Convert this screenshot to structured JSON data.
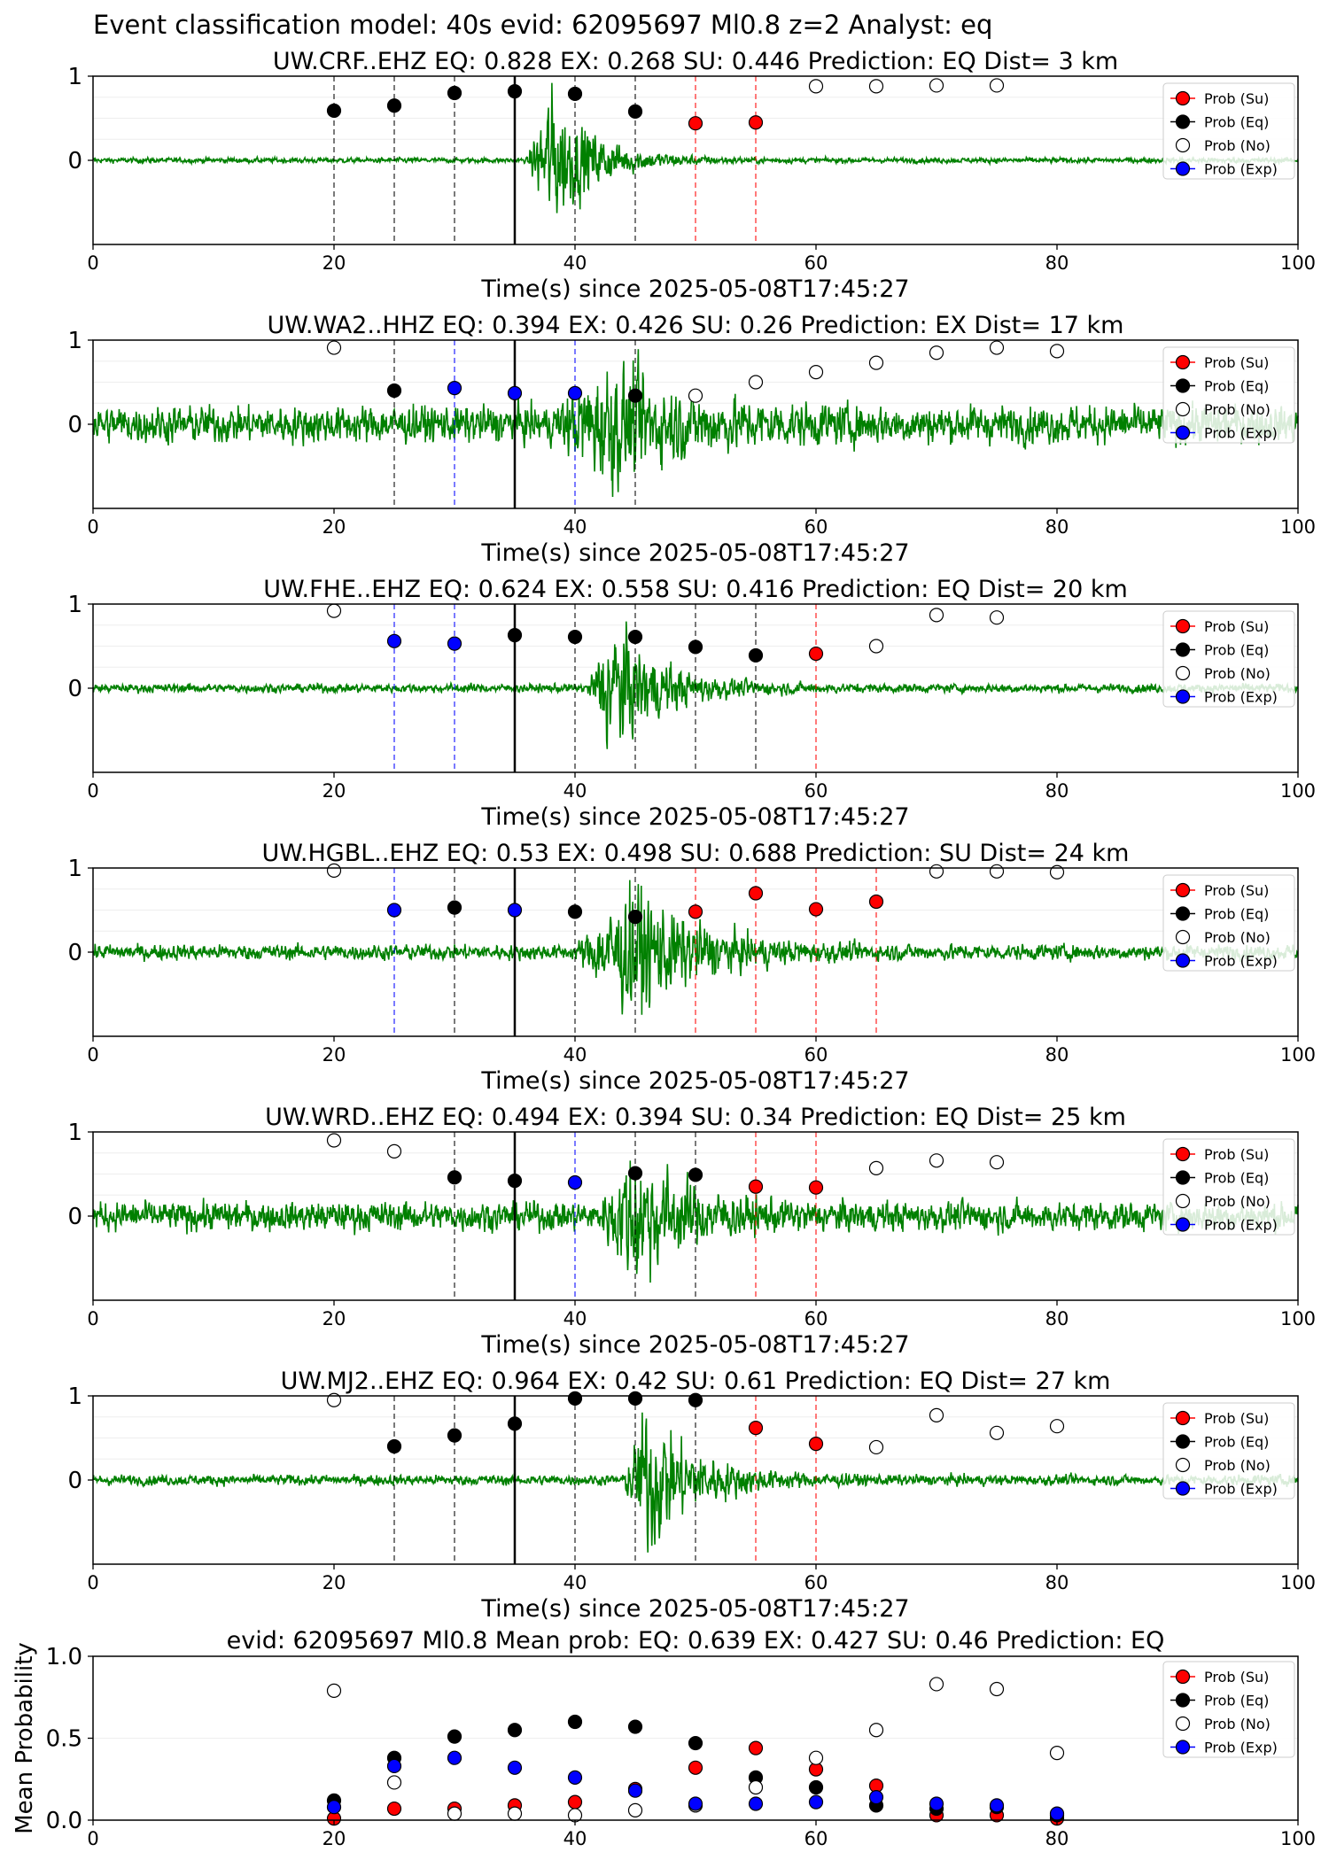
{
  "figure": {
    "suptitle": "Event classification model: 40s evid: 62095697 Ml0.8 z=2 Analyst: eq"
  },
  "legend_labels": [
    "Prob (Su)",
    "Prob (Eq)",
    "Prob (No)",
    "Prob (Exp)"
  ],
  "colors": {
    "su": "#ff0000",
    "eq": "#000000",
    "no": "#ffffff",
    "exp": "#0000ff",
    "waveform": "#008000"
  },
  "chart_data": [
    {
      "type": "line",
      "title": "UW.CRF..EHZ   EQ: 0.828  EX: 0.268  SU: 0.446   Prediction: EQ    Dist= 3 km",
      "xlabel": "Time(s) since 2025-05-08T17:45:27",
      "xlim": [
        0,
        100
      ],
      "ylim": [
        -1,
        1
      ],
      "xticks": [
        "0",
        "20",
        "40",
        "60",
        "80",
        "100"
      ],
      "yticks": [
        "1",
        "0"
      ],
      "origin_time": 35,
      "window_lines": [
        {
          "x": 20,
          "class": "eq"
        },
        {
          "x": 25,
          "class": "eq"
        },
        {
          "x": 30,
          "class": "eq"
        },
        {
          "x": 40,
          "class": "eq"
        },
        {
          "x": 45,
          "class": "eq"
        },
        {
          "x": 50,
          "class": "su"
        },
        {
          "x": 55,
          "class": "su"
        }
      ],
      "points": [
        {
          "x": 20,
          "y": 0.59,
          "class": "eq"
        },
        {
          "x": 25,
          "y": 0.65,
          "class": "eq"
        },
        {
          "x": 30,
          "y": 0.8,
          "class": "eq"
        },
        {
          "x": 35,
          "y": 0.82,
          "class": "eq"
        },
        {
          "x": 40,
          "y": 0.79,
          "class": "eq"
        },
        {
          "x": 45,
          "y": 0.58,
          "class": "eq"
        },
        {
          "x": 50,
          "y": 0.44,
          "class": "su"
        },
        {
          "x": 55,
          "y": 0.45,
          "class": "su"
        },
        {
          "x": 60,
          "y": 0.88,
          "class": "no"
        },
        {
          "x": 65,
          "y": 0.88,
          "class": "no"
        },
        {
          "x": 70,
          "y": 0.89,
          "class": "no"
        },
        {
          "x": 75,
          "y": 0.89,
          "class": "no"
        }
      ],
      "waveform": {
        "noise": 0.03,
        "burst_start": 36,
        "burst_peak": 38,
        "burst_amp": 0.85,
        "decay": 3.5
      }
    },
    {
      "type": "line",
      "title": "UW.WA2..HHZ   EQ: 0.394  EX: 0.426  SU: 0.26   Prediction: EX    Dist= 17 km",
      "xlabel": "Time(s) since 2025-05-08T17:45:27",
      "xlim": [
        0,
        100
      ],
      "ylim": [
        -1,
        1
      ],
      "xticks": [
        "0",
        "20",
        "40",
        "60",
        "80",
        "100"
      ],
      "yticks": [
        "1",
        "0"
      ],
      "origin_time": 35,
      "window_lines": [
        {
          "x": 25,
          "class": "eq"
        },
        {
          "x": 30,
          "class": "exp"
        },
        {
          "x": 40,
          "class": "exp"
        },
        {
          "x": 45,
          "class": "eq"
        }
      ],
      "points": [
        {
          "x": 20,
          "y": 0.91,
          "class": "no"
        },
        {
          "x": 25,
          "y": 0.4,
          "class": "eq"
        },
        {
          "x": 30,
          "y": 0.43,
          "class": "exp"
        },
        {
          "x": 35,
          "y": 0.37,
          "class": "exp"
        },
        {
          "x": 40,
          "y": 0.37,
          "class": "exp"
        },
        {
          "x": 45,
          "y": 0.34,
          "class": "eq"
        },
        {
          "x": 50,
          "y": 0.34,
          "class": "no"
        },
        {
          "x": 55,
          "y": 0.5,
          "class": "no"
        },
        {
          "x": 60,
          "y": 0.62,
          "class": "no"
        },
        {
          "x": 65,
          "y": 0.73,
          "class": "no"
        },
        {
          "x": 70,
          "y": 0.85,
          "class": "no"
        },
        {
          "x": 75,
          "y": 0.91,
          "class": "no"
        },
        {
          "x": 80,
          "y": 0.87,
          "class": "no"
        }
      ],
      "waveform": {
        "noise": 0.22,
        "burst_start": 38,
        "burst_peak": 43,
        "burst_amp": 0.55,
        "decay": 6
      }
    },
    {
      "type": "line",
      "title": "UW.FHE..EHZ   EQ: 0.624  EX: 0.558  SU: 0.416   Prediction: EQ    Dist= 20 km",
      "xlabel": "Time(s) since 2025-05-08T17:45:27",
      "xlim": [
        0,
        100
      ],
      "ylim": [
        -1,
        1
      ],
      "xticks": [
        "0",
        "20",
        "40",
        "60",
        "80",
        "100"
      ],
      "yticks": [
        "1",
        "0"
      ],
      "origin_time": 35,
      "window_lines": [
        {
          "x": 25,
          "class": "exp"
        },
        {
          "x": 30,
          "class": "exp"
        },
        {
          "x": 40,
          "class": "eq"
        },
        {
          "x": 45,
          "class": "eq"
        },
        {
          "x": 50,
          "class": "eq"
        },
        {
          "x": 55,
          "class": "eq"
        },
        {
          "x": 60,
          "class": "su"
        }
      ],
      "points": [
        {
          "x": 20,
          "y": 0.92,
          "class": "no"
        },
        {
          "x": 25,
          "y": 0.56,
          "class": "exp"
        },
        {
          "x": 30,
          "y": 0.53,
          "class": "exp"
        },
        {
          "x": 35,
          "y": 0.63,
          "class": "eq"
        },
        {
          "x": 40,
          "y": 0.61,
          "class": "eq"
        },
        {
          "x": 45,
          "y": 0.61,
          "class": "eq"
        },
        {
          "x": 50,
          "y": 0.49,
          "class": "eq"
        },
        {
          "x": 55,
          "y": 0.39,
          "class": "eq"
        },
        {
          "x": 60,
          "y": 0.41,
          "class": "su"
        },
        {
          "x": 65,
          "y": 0.5,
          "class": "no"
        },
        {
          "x": 70,
          "y": 0.87,
          "class": "no"
        },
        {
          "x": 75,
          "y": 0.84,
          "class": "no"
        }
      ],
      "waveform": {
        "noise": 0.05,
        "burst_start": 41,
        "burst_peak": 43,
        "burst_amp": 0.8,
        "decay": 4
      }
    },
    {
      "type": "line",
      "title": "UW.HGBL..EHZ   EQ: 0.53  EX: 0.498  SU: 0.688   Prediction: SU    Dist= 24 km",
      "xlabel": "Time(s) since 2025-05-08T17:45:27",
      "xlim": [
        0,
        100
      ],
      "ylim": [
        -1,
        1
      ],
      "xticks": [
        "0",
        "20",
        "40",
        "60",
        "80",
        "100"
      ],
      "yticks": [
        "1",
        "0"
      ],
      "origin_time": 35,
      "window_lines": [
        {
          "x": 25,
          "class": "exp"
        },
        {
          "x": 30,
          "class": "eq"
        },
        {
          "x": 40,
          "class": "eq"
        },
        {
          "x": 45,
          "class": "eq"
        },
        {
          "x": 50,
          "class": "su"
        },
        {
          "x": 55,
          "class": "su"
        },
        {
          "x": 60,
          "class": "su"
        },
        {
          "x": 65,
          "class": "su"
        }
      ],
      "points": [
        {
          "x": 20,
          "y": 0.97,
          "class": "no"
        },
        {
          "x": 25,
          "y": 0.5,
          "class": "exp"
        },
        {
          "x": 30,
          "y": 0.53,
          "class": "eq"
        },
        {
          "x": 35,
          "y": 0.5,
          "class": "exp"
        },
        {
          "x": 40,
          "y": 0.48,
          "class": "eq"
        },
        {
          "x": 45,
          "y": 0.42,
          "class": "eq"
        },
        {
          "x": 50,
          "y": 0.48,
          "class": "su"
        },
        {
          "x": 55,
          "y": 0.7,
          "class": "su"
        },
        {
          "x": 60,
          "y": 0.51,
          "class": "su"
        },
        {
          "x": 65,
          "y": 0.6,
          "class": "su"
        },
        {
          "x": 70,
          "y": 0.96,
          "class": "no"
        },
        {
          "x": 75,
          "y": 0.96,
          "class": "no"
        },
        {
          "x": 80,
          "y": 0.95,
          "class": "no"
        }
      ],
      "waveform": {
        "noise": 0.09,
        "burst_start": 40,
        "burst_peak": 45,
        "burst_amp": 0.75,
        "decay": 5
      }
    },
    {
      "type": "line",
      "title": "UW.WRD..EHZ   EQ: 0.494  EX: 0.394  SU: 0.34   Prediction: EQ    Dist= 25 km",
      "xlabel": "Time(s) since 2025-05-08T17:45:27",
      "xlim": [
        0,
        100
      ],
      "ylim": [
        -1,
        1
      ],
      "xticks": [
        "0",
        "20",
        "40",
        "60",
        "80",
        "100"
      ],
      "yticks": [
        "1",
        "0"
      ],
      "origin_time": 35,
      "window_lines": [
        {
          "x": 30,
          "class": "eq"
        },
        {
          "x": 40,
          "class": "exp"
        },
        {
          "x": 45,
          "class": "eq"
        },
        {
          "x": 50,
          "class": "eq"
        },
        {
          "x": 55,
          "class": "su"
        },
        {
          "x": 60,
          "class": "su"
        }
      ],
      "points": [
        {
          "x": 20,
          "y": 0.9,
          "class": "no"
        },
        {
          "x": 25,
          "y": 0.77,
          "class": "no"
        },
        {
          "x": 30,
          "y": 0.46,
          "class": "eq"
        },
        {
          "x": 35,
          "y": 0.42,
          "class": "eq"
        },
        {
          "x": 40,
          "y": 0.4,
          "class": "exp"
        },
        {
          "x": 45,
          "y": 0.51,
          "class": "eq"
        },
        {
          "x": 50,
          "y": 0.49,
          "class": "eq"
        },
        {
          "x": 55,
          "y": 0.35,
          "class": "su"
        },
        {
          "x": 60,
          "y": 0.34,
          "class": "su"
        },
        {
          "x": 65,
          "y": 0.57,
          "class": "no"
        },
        {
          "x": 70,
          "y": 0.66,
          "class": "no"
        },
        {
          "x": 75,
          "y": 0.64,
          "class": "no"
        }
      ],
      "waveform": {
        "noise": 0.17,
        "burst_start": 42,
        "burst_peak": 45,
        "burst_amp": 0.7,
        "decay": 4
      }
    },
    {
      "type": "line",
      "title": "UW.MJ2..EHZ   EQ: 0.964  EX: 0.42  SU: 0.61   Prediction: EQ    Dist= 27 km",
      "xlabel": "Time(s) since 2025-05-08T17:45:27",
      "xlim": [
        0,
        100
      ],
      "ylim": [
        -1,
        1
      ],
      "xticks": [
        "0",
        "20",
        "40",
        "60",
        "80",
        "100"
      ],
      "yticks": [
        "1",
        "0"
      ],
      "origin_time": 35,
      "window_lines": [
        {
          "x": 25,
          "class": "eq"
        },
        {
          "x": 30,
          "class": "eq"
        },
        {
          "x": 40,
          "class": "eq"
        },
        {
          "x": 45,
          "class": "eq"
        },
        {
          "x": 50,
          "class": "eq"
        },
        {
          "x": 55,
          "class": "su"
        },
        {
          "x": 60,
          "class": "su"
        }
      ],
      "points": [
        {
          "x": 20,
          "y": 0.95,
          "class": "no"
        },
        {
          "x": 25,
          "y": 0.4,
          "class": "eq"
        },
        {
          "x": 30,
          "y": 0.53,
          "class": "eq"
        },
        {
          "x": 35,
          "y": 0.67,
          "class": "eq"
        },
        {
          "x": 40,
          "y": 0.97,
          "class": "eq"
        },
        {
          "x": 45,
          "y": 0.97,
          "class": "eq"
        },
        {
          "x": 50,
          "y": 0.95,
          "class": "eq"
        },
        {
          "x": 55,
          "y": 0.62,
          "class": "su"
        },
        {
          "x": 60,
          "y": 0.43,
          "class": "su"
        },
        {
          "x": 65,
          "y": 0.39,
          "class": "no"
        },
        {
          "x": 70,
          "y": 0.77,
          "class": "no"
        },
        {
          "x": 75,
          "y": 0.56,
          "class": "no"
        },
        {
          "x": 80,
          "y": 0.64,
          "class": "no"
        }
      ],
      "waveform": {
        "noise": 0.06,
        "burst_start": 44,
        "burst_peak": 46,
        "burst_amp": 0.85,
        "decay": 4
      }
    },
    {
      "type": "scatter",
      "title": "evid: 62095697  Ml0.8   Mean prob:   EQ: 0.639  EX: 0.427  SU: 0.46   Prediction: EQ",
      "ylabel": "Mean Probability",
      "xlim": [
        0,
        100
      ],
      "ylim": [
        0,
        1
      ],
      "xticks": [
        "0",
        "20",
        "40",
        "60",
        "80",
        "100"
      ],
      "yticks": [
        "1.0",
        "0.5",
        "0.0"
      ],
      "x": [
        20,
        25,
        30,
        35,
        40,
        45,
        50,
        55,
        60,
        65,
        70,
        75,
        80
      ],
      "series": [
        {
          "class": "su",
          "values": [
            0.01,
            0.07,
            0.07,
            0.09,
            0.11,
            0.19,
            0.32,
            0.44,
            0.31,
            0.21,
            0.03,
            0.03,
            0.01
          ]
        },
        {
          "class": "eq",
          "values": [
            0.12,
            0.38,
            0.51,
            0.55,
            0.6,
            0.57,
            0.47,
            0.26,
            0.2,
            0.09,
            0.07,
            0.08,
            0.03
          ]
        },
        {
          "class": "no",
          "values": [
            0.79,
            0.23,
            0.04,
            0.04,
            0.03,
            0.06,
            0.09,
            0.2,
            0.38,
            0.55,
            0.83,
            0.8,
            0.41
          ]
        },
        {
          "class": "exp",
          "values": [
            0.08,
            0.33,
            0.38,
            0.32,
            0.26,
            0.18,
            0.1,
            0.1,
            0.11,
            0.14,
            0.1,
            0.09,
            0.04
          ]
        }
      ]
    }
  ]
}
